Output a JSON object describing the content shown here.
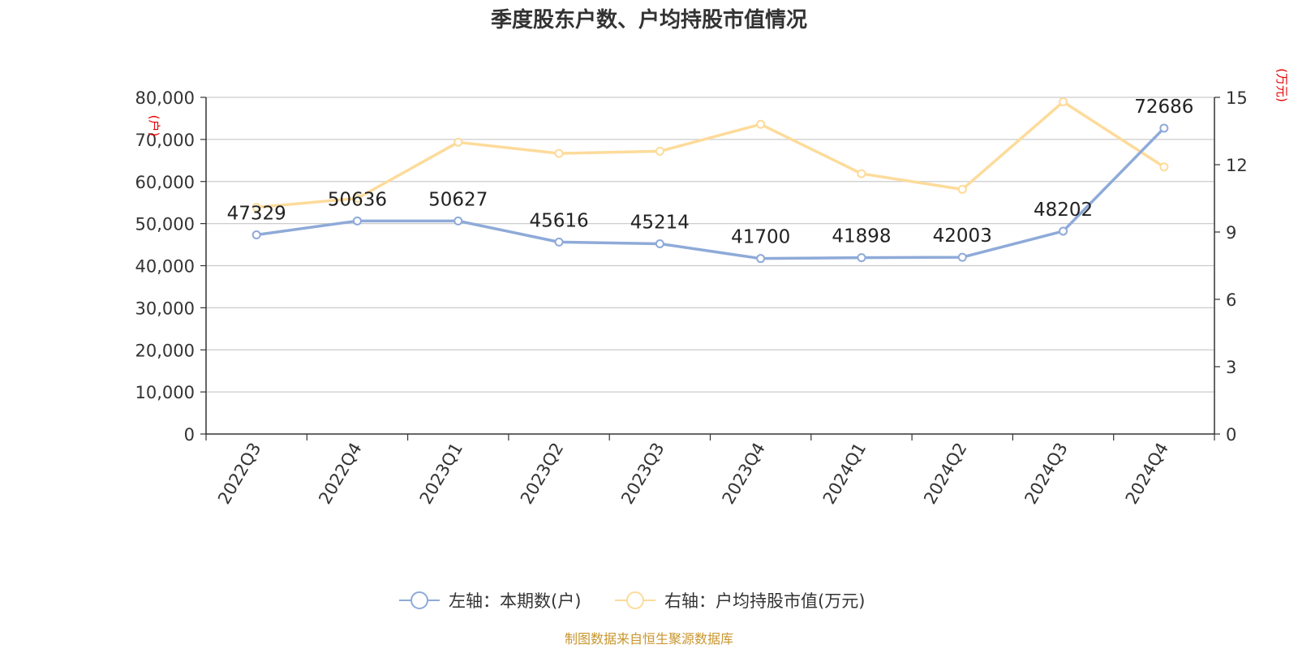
{
  "chart_data": {
    "type": "line",
    "title": "季度股东户数、户均持股市值情况",
    "categories": [
      "2022Q3",
      "2022Q4",
      "2023Q1",
      "2023Q2",
      "2023Q3",
      "2023Q4",
      "2024Q1",
      "2024Q2",
      "2024Q3",
      "2024Q4"
    ],
    "left_axis": {
      "unit_label": "(户)",
      "ylim": [
        0,
        80000
      ],
      "ticks": [
        "0",
        "10,000",
        "20,000",
        "30,000",
        "40,000",
        "50,000",
        "60,000",
        "70,000",
        "80,000"
      ]
    },
    "right_axis": {
      "unit_label": "(万元)",
      "ylim": [
        0,
        15
      ],
      "ticks": [
        "0",
        "3",
        "6",
        "9",
        "12",
        "15"
      ]
    },
    "series": [
      {
        "name": "左轴：本期数(户)",
        "axis": "left",
        "color": "#8eaad8",
        "values": [
          47329,
          50636,
          50627,
          45616,
          45214,
          41700,
          41898,
          42003,
          48202,
          72686
        ],
        "data_labels": [
          "47329",
          "50636",
          "50627",
          "45616",
          "45214",
          "41700",
          "41898",
          "42003",
          "48202",
          "72686"
        ]
      },
      {
        "name": "右轴：户均持股市值(万元)",
        "axis": "right",
        "color": "#fddb9a",
        "values": [
          10.1,
          10.5,
          13.0,
          12.5,
          12.6,
          13.8,
          11.6,
          10.9,
          14.8,
          11.9
        ]
      }
    ],
    "grid": true,
    "legend_position": "bottom-center",
    "source": "制图数据来自恒生聚源数据库"
  }
}
